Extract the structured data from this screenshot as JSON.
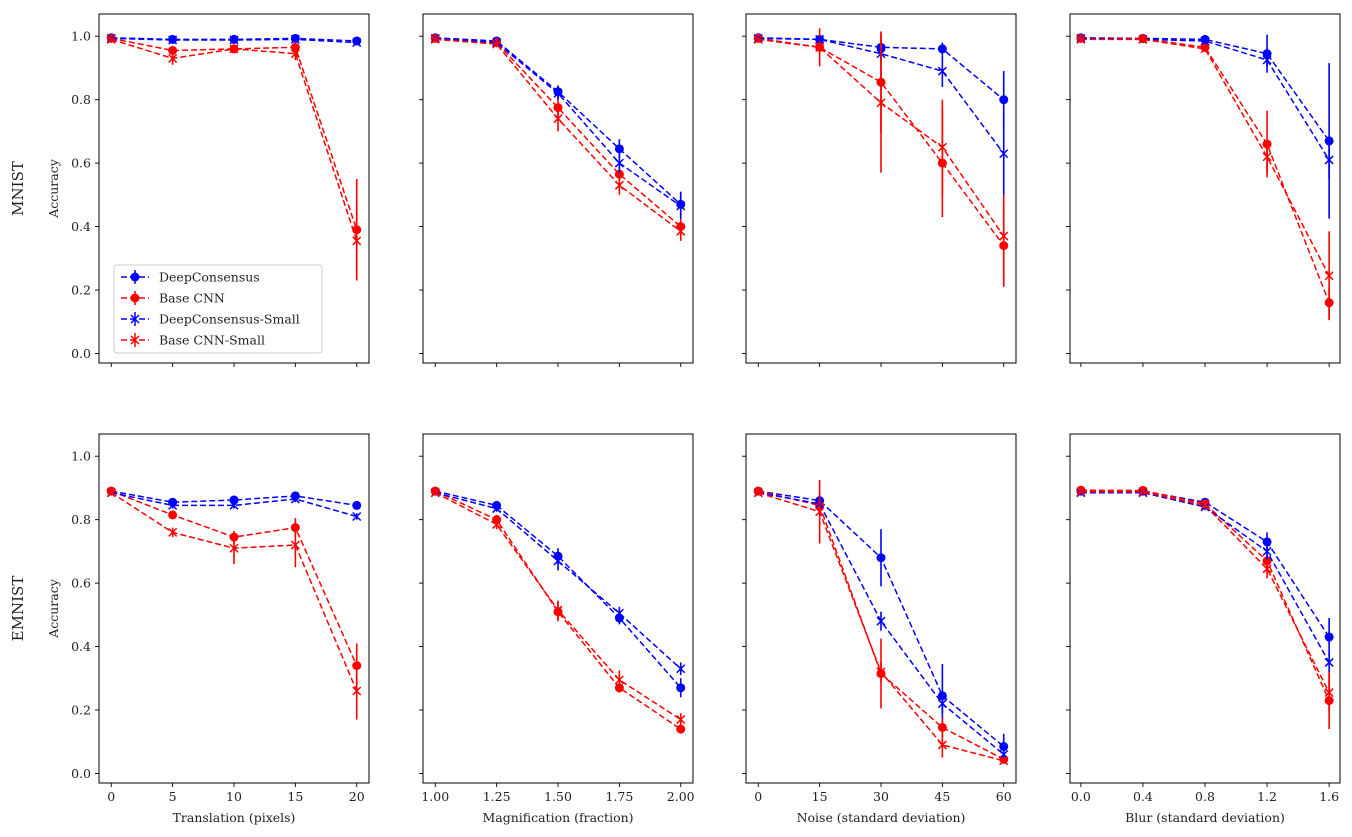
{
  "colors": {
    "deepconsensus": "#0000ff",
    "base_cnn": "#ff0000",
    "axes": "#000000",
    "legend_border": "#cccccc"
  },
  "rows": [
    "MNIST",
    "EMNIST"
  ],
  "ylabel": "Accuracy",
  "legend": {
    "location": "lower-left",
    "entries": [
      {
        "label": "DeepConsensus",
        "color": "#0000ff",
        "marker": "o"
      },
      {
        "label": "Base CNN",
        "color": "#ff0000",
        "marker": "o"
      },
      {
        "label": "DeepConsensus-Small",
        "color": "#0000ff",
        "marker": "x"
      },
      {
        "label": "Base CNN-Small",
        "color": "#ff0000",
        "marker": "x"
      }
    ]
  },
  "chart_data": [
    {
      "id": "mnist-translation",
      "type": "line",
      "row": 0,
      "col": 0,
      "xlabel": "",
      "ylabel": "Accuracy",
      "row_title": "MNIST",
      "x": [
        0,
        5,
        10,
        15,
        20
      ],
      "xlim": [
        -1,
        21
      ],
      "ylim": [
        -0.03,
        1.07
      ],
      "xticks": [
        0,
        5,
        10,
        15,
        20
      ],
      "xtick_labels": [],
      "yticks": [
        0.0,
        0.2,
        0.4,
        0.6,
        0.8,
        1.0
      ],
      "ytick_labels": [
        "0.0",
        "0.2",
        "0.4",
        "0.6",
        "0.8",
        "1.0"
      ],
      "series": [
        {
          "name": "DeepConsensus",
          "color": "#0000ff",
          "marker": "o",
          "values": [
            0.995,
            0.99,
            0.99,
            0.993,
            0.985
          ],
          "err": [
            0.005,
            0.005,
            0.005,
            0.005,
            0.005
          ]
        },
        {
          "name": "Base CNN",
          "color": "#ff0000",
          "marker": "o",
          "values": [
            0.993,
            0.955,
            0.96,
            0.965,
            0.39
          ],
          "err": [
            0.005,
            0.01,
            0.01,
            0.01,
            0.16
          ]
        },
        {
          "name": "DeepConsensus-Small",
          "color": "#0000ff",
          "marker": "x",
          "values": [
            0.993,
            0.988,
            0.988,
            0.99,
            0.98
          ],
          "err": [
            0.005,
            0.005,
            0.005,
            0.005,
            0.005
          ]
        },
        {
          "name": "Base CNN-Small",
          "color": "#ff0000",
          "marker": "x",
          "values": [
            0.99,
            0.93,
            0.96,
            0.945,
            0.355
          ],
          "err": [
            0.005,
            0.02,
            0.01,
            0.02,
            0.12
          ]
        }
      ]
    },
    {
      "id": "mnist-magnification",
      "type": "line",
      "row": 0,
      "col": 1,
      "xlabel": "",
      "ylabel": "",
      "x": [
        1.0,
        1.25,
        1.5,
        1.75,
        2.0
      ],
      "xlim": [
        0.95,
        2.05
      ],
      "ylim": [
        -0.03,
        1.07
      ],
      "xticks": [
        1.0,
        1.25,
        1.5,
        1.75,
        2.0
      ],
      "xtick_labels": [],
      "yticks": [
        0.0,
        0.2,
        0.4,
        0.6,
        0.8,
        1.0
      ],
      "ytick_labels": [],
      "series": [
        {
          "name": "DeepConsensus",
          "color": "#0000ff",
          "marker": "o",
          "values": [
            0.995,
            0.985,
            0.825,
            0.645,
            0.47
          ],
          "err": [
            0.005,
            0.005,
            0.02,
            0.03,
            0.04
          ]
        },
        {
          "name": "Base CNN",
          "color": "#ff0000",
          "marker": "o",
          "values": [
            0.993,
            0.98,
            0.775,
            0.565,
            0.4
          ],
          "err": [
            0.005,
            0.005,
            0.03,
            0.03,
            0.03
          ]
        },
        {
          "name": "DeepConsensus-Small",
          "color": "#0000ff",
          "marker": "x",
          "values": [
            0.993,
            0.98,
            0.82,
            0.6,
            0.465
          ],
          "err": [
            0.005,
            0.005,
            0.02,
            0.03,
            0.04
          ]
        },
        {
          "name": "Base CNN-Small",
          "color": "#ff0000",
          "marker": "x",
          "values": [
            0.99,
            0.975,
            0.74,
            0.53,
            0.385
          ],
          "err": [
            0.005,
            0.01,
            0.04,
            0.03,
            0.03
          ]
        }
      ]
    },
    {
      "id": "mnist-noise",
      "type": "line",
      "row": 0,
      "col": 2,
      "xlabel": "",
      "ylabel": "",
      "x": [
        0,
        15,
        30,
        45,
        60
      ],
      "xlim": [
        -3,
        63
      ],
      "ylim": [
        -0.03,
        1.07
      ],
      "xticks": [
        0,
        15,
        30,
        45,
        60
      ],
      "xtick_labels": [],
      "yticks": [
        0.0,
        0.2,
        0.4,
        0.6,
        0.8,
        1.0
      ],
      "ytick_labels": [],
      "series": [
        {
          "name": "DeepConsensus",
          "color": "#0000ff",
          "marker": "o",
          "values": [
            0.995,
            0.99,
            0.965,
            0.96,
            0.8
          ],
          "err": [
            0.005,
            0.01,
            0.02,
            0.02,
            0.09
          ]
        },
        {
          "name": "Base CNN",
          "color": "#ff0000",
          "marker": "o",
          "values": [
            0.993,
            0.965,
            0.855,
            0.6,
            0.34
          ],
          "err": [
            0.005,
            0.06,
            0.16,
            0.17,
            0.13
          ]
        },
        {
          "name": "DeepConsensus-Small",
          "color": "#0000ff",
          "marker": "x",
          "values": [
            0.993,
            0.99,
            0.945,
            0.89,
            0.63
          ],
          "err": [
            0.005,
            0.01,
            0.02,
            0.05,
            0.13
          ]
        },
        {
          "name": "Base CNN-Small",
          "color": "#ff0000",
          "marker": "x",
          "values": [
            0.99,
            0.965,
            0.79,
            0.65,
            0.37
          ],
          "err": [
            0.005,
            0.02,
            0.22,
            0.15,
            0.13
          ]
        }
      ]
    },
    {
      "id": "mnist-blur",
      "type": "line",
      "row": 0,
      "col": 3,
      "xlabel": "",
      "ylabel": "",
      "x": [
        0.0,
        0.4,
        0.8,
        1.2,
        1.6
      ],
      "xlim": [
        -0.07,
        1.67
      ],
      "ylim": [
        -0.03,
        1.07
      ],
      "xticks": [
        0.0,
        0.4,
        0.8,
        1.2,
        1.6
      ],
      "xtick_labels": [],
      "yticks": [
        0.0,
        0.2,
        0.4,
        0.6,
        0.8,
        1.0
      ],
      "ytick_labels": [],
      "series": [
        {
          "name": "DeepConsensus",
          "color": "#0000ff",
          "marker": "o",
          "values": [
            0.995,
            0.993,
            0.99,
            0.945,
            0.67
          ],
          "err": [
            0.005,
            0.005,
            0.01,
            0.06,
            0.245
          ]
        },
        {
          "name": "Base CNN",
          "color": "#ff0000",
          "marker": "o",
          "values": [
            0.993,
            0.992,
            0.965,
            0.66,
            0.16
          ],
          "err": [
            0.005,
            0.005,
            0.01,
            0.105,
            0.05
          ]
        },
        {
          "name": "DeepConsensus-Small",
          "color": "#0000ff",
          "marker": "x",
          "values": [
            0.993,
            0.99,
            0.985,
            0.925,
            0.61
          ],
          "err": [
            0.005,
            0.005,
            0.01,
            0.02,
            0.06
          ]
        },
        {
          "name": "Base CNN-Small",
          "color": "#ff0000",
          "marker": "x",
          "values": [
            0.99,
            0.99,
            0.96,
            0.62,
            0.245
          ],
          "err": [
            0.005,
            0.005,
            0.01,
            0.05,
            0.14
          ]
        }
      ]
    },
    {
      "id": "emnist-translation",
      "type": "line",
      "row": 1,
      "col": 0,
      "xlabel": "Translation (pixels)",
      "ylabel": "Accuracy",
      "row_title": "EMNIST",
      "x": [
        0,
        5,
        10,
        15,
        20
      ],
      "xlim": [
        -1,
        21
      ],
      "ylim": [
        -0.03,
        1.07
      ],
      "xticks": [
        0,
        5,
        10,
        15,
        20
      ],
      "xtick_labels": [
        "0",
        "5",
        "10",
        "15",
        "20"
      ],
      "yticks": [
        0.0,
        0.2,
        0.4,
        0.6,
        0.8,
        1.0
      ],
      "ytick_labels": [
        "0.0",
        "0.2",
        "0.4",
        "0.6",
        "0.8",
        "1.0"
      ],
      "series": [
        {
          "name": "DeepConsensus",
          "color": "#0000ff",
          "marker": "o",
          "values": [
            0.89,
            0.855,
            0.862,
            0.875,
            0.845
          ],
          "err": [
            0.005,
            0.01,
            0.01,
            0.01,
            0.01
          ]
        },
        {
          "name": "Base CNN",
          "color": "#ff0000",
          "marker": "o",
          "values": [
            0.89,
            0.815,
            0.745,
            0.775,
            0.34
          ],
          "err": [
            0.005,
            0.01,
            0.02,
            0.03,
            0.07
          ]
        },
        {
          "name": "DeepConsensus-Small",
          "color": "#0000ff",
          "marker": "x",
          "values": [
            0.885,
            0.845,
            0.845,
            0.865,
            0.81
          ],
          "err": [
            0.005,
            0.01,
            0.01,
            0.01,
            0.01
          ]
        },
        {
          "name": "Base CNN-Small",
          "color": "#ff0000",
          "marker": "x",
          "values": [
            0.885,
            0.76,
            0.71,
            0.72,
            0.26
          ],
          "err": [
            0.005,
            0.015,
            0.05,
            0.07,
            0.09
          ]
        }
      ]
    },
    {
      "id": "emnist-magnification",
      "type": "line",
      "row": 1,
      "col": 1,
      "xlabel": "Magnification (fraction)",
      "ylabel": "",
      "x": [
        1.0,
        1.25,
        1.5,
        1.75,
        2.0
      ],
      "xlim": [
        0.95,
        2.05
      ],
      "ylim": [
        -0.03,
        1.07
      ],
      "xticks": [
        1.0,
        1.25,
        1.5,
        1.75,
        2.0
      ],
      "xtick_labels": [
        "1.00",
        "1.25",
        "1.50",
        "1.75",
        "2.00"
      ],
      "yticks": [
        0.0,
        0.2,
        0.4,
        0.6,
        0.8,
        1.0
      ],
      "ytick_labels": [],
      "series": [
        {
          "name": "DeepConsensus",
          "color": "#0000ff",
          "marker": "o",
          "values": [
            0.89,
            0.845,
            0.685,
            0.49,
            0.27
          ],
          "err": [
            0.005,
            0.01,
            0.025,
            0.02,
            0.03
          ]
        },
        {
          "name": "Base CNN",
          "color": "#ff0000",
          "marker": "o",
          "values": [
            0.89,
            0.8,
            0.51,
            0.27,
            0.14
          ],
          "err": [
            0.005,
            0.015,
            0.03,
            0.015,
            0.01
          ]
        },
        {
          "name": "DeepConsensus-Small",
          "color": "#0000ff",
          "marker": "x",
          "values": [
            0.885,
            0.835,
            0.67,
            0.505,
            0.33
          ],
          "err": [
            0.005,
            0.01,
            0.03,
            0.02,
            0.02
          ]
        },
        {
          "name": "Base CNN-Small",
          "color": "#ff0000",
          "marker": "x",
          "values": [
            0.885,
            0.785,
            0.515,
            0.295,
            0.17
          ],
          "err": [
            0.005,
            0.015,
            0.03,
            0.03,
            0.02
          ]
        }
      ]
    },
    {
      "id": "emnist-noise",
      "type": "line",
      "row": 1,
      "col": 2,
      "xlabel": "Noise (standard deviation)",
      "ylabel": "",
      "x": [
        0,
        15,
        30,
        45,
        60
      ],
      "xlim": [
        -3,
        63
      ],
      "ylim": [
        -0.03,
        1.07
      ],
      "xticks": [
        0,
        15,
        30,
        45,
        60
      ],
      "xtick_labels": [
        "0",
        "15",
        "30",
        "45",
        "60"
      ],
      "yticks": [
        0.0,
        0.2,
        0.4,
        0.6,
        0.8,
        1.0
      ],
      "ytick_labels": [],
      "series": [
        {
          "name": "DeepConsensus",
          "color": "#0000ff",
          "marker": "o",
          "values": [
            0.89,
            0.86,
            0.68,
            0.245,
            0.085
          ],
          "err": [
            0.005,
            0.02,
            0.09,
            0.1,
            0.04
          ]
        },
        {
          "name": "Base CNN",
          "color": "#ff0000",
          "marker": "o",
          "values": [
            0.89,
            0.845,
            0.315,
            0.145,
            0.045
          ],
          "err": [
            0.005,
            0.02,
            0.11,
            0.03,
            0.01
          ]
        },
        {
          "name": "DeepConsensus-Small",
          "color": "#0000ff",
          "marker": "x",
          "values": [
            0.885,
            0.85,
            0.48,
            0.22,
            0.06
          ],
          "err": [
            0.005,
            0.02,
            0.03,
            0.03,
            0.01
          ]
        },
        {
          "name": "Base CNN-Small",
          "color": "#ff0000",
          "marker": "x",
          "values": [
            0.885,
            0.825,
            0.32,
            0.09,
            0.04
          ],
          "err": [
            0.005,
            0.1,
            0.03,
            0.04,
            0.01
          ]
        }
      ]
    },
    {
      "id": "emnist-blur",
      "type": "line",
      "row": 1,
      "col": 3,
      "xlabel": "Blur (standard deviation)",
      "ylabel": "",
      "x": [
        0.0,
        0.4,
        0.8,
        1.2,
        1.6
      ],
      "xlim": [
        -0.07,
        1.67
      ],
      "ylim": [
        -0.03,
        1.07
      ],
      "xticks": [
        0.0,
        0.4,
        0.8,
        1.2,
        1.6
      ],
      "xtick_labels": [
        "0.0",
        "0.4",
        "0.8",
        "1.2",
        "1.6"
      ],
      "yticks": [
        0.0,
        0.2,
        0.4,
        0.6,
        0.8,
        1.0
      ],
      "ytick_labels": [],
      "series": [
        {
          "name": "DeepConsensus",
          "color": "#0000ff",
          "marker": "o",
          "values": [
            0.89,
            0.89,
            0.855,
            0.73,
            0.43
          ],
          "err": [
            0.005,
            0.005,
            0.01,
            0.03,
            0.06
          ]
        },
        {
          "name": "Base CNN",
          "color": "#ff0000",
          "marker": "o",
          "values": [
            0.893,
            0.892,
            0.85,
            0.67,
            0.23
          ],
          "err": [
            0.005,
            0.005,
            0.01,
            0.03,
            0.09
          ]
        },
        {
          "name": "DeepConsensus-Small",
          "color": "#0000ff",
          "marker": "x",
          "values": [
            0.885,
            0.885,
            0.84,
            0.7,
            0.35
          ],
          "err": [
            0.005,
            0.005,
            0.01,
            0.03,
            0.03
          ]
        },
        {
          "name": "Base CNN-Small",
          "color": "#ff0000",
          "marker": "x",
          "values": [
            0.888,
            0.888,
            0.845,
            0.645,
            0.255
          ],
          "err": [
            0.005,
            0.005,
            0.01,
            0.03,
            0.06
          ]
        }
      ]
    }
  ]
}
